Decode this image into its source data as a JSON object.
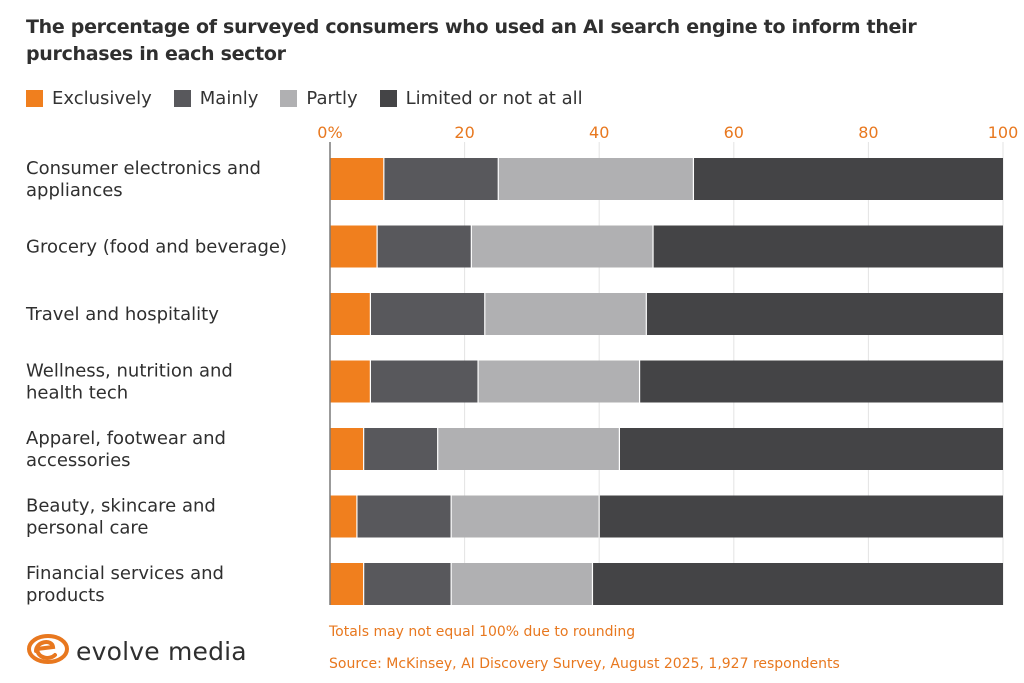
{
  "title": "The percentage of surveyed consumers who used an AI search engine to inform their purchases in each sector",
  "legend": [
    {
      "label": "Exclusively",
      "color": "#f07f1e"
    },
    {
      "label": "Mainly",
      "color": "#58585c"
    },
    {
      "label": "Partly",
      "color": "#b0b0b2"
    },
    {
      "label": "Limited or not at all",
      "color": "#444446"
    }
  ],
  "chart_data": {
    "type": "bar",
    "orientation": "horizontal",
    "stacked": true,
    "title": "The percentage of surveyed consumers who used an AI search engine to inform their purchases in each sector",
    "xlabel": "",
    "ylabel": "",
    "xlim": [
      0,
      100
    ],
    "ticks": [
      "0%",
      "20",
      "40",
      "60",
      "80",
      "100"
    ],
    "tick_values": [
      0,
      20,
      40,
      60,
      80,
      100
    ],
    "grid": true,
    "legend_position": "top-left",
    "categories": [
      [
        "Consumer electronics and",
        "appliances"
      ],
      [
        "Grocery (food and beverage)"
      ],
      [
        "Travel and hospitality"
      ],
      [
        "Wellness, nutrition and",
        "health tech"
      ],
      [
        "Apparel, footwear and",
        "accessories"
      ],
      [
        "Beauty, skincare and",
        "personal care"
      ],
      [
        "Financial services and",
        "products"
      ]
    ],
    "series": [
      {
        "name": "Exclusively",
        "color": "#f07f1e",
        "values": [
          8,
          7,
          6,
          6,
          5,
          4,
          5
        ]
      },
      {
        "name": "Mainly",
        "color": "#58585c",
        "values": [
          17,
          14,
          17,
          16,
          11,
          14,
          13
        ]
      },
      {
        "name": "Partly",
        "color": "#b0b0b2",
        "values": [
          29,
          27,
          24,
          24,
          27,
          22,
          21
        ]
      },
      {
        "name": "Limited or not at all",
        "color": "#444446",
        "values": [
          46,
          52,
          53,
          55,
          57,
          60,
          61
        ]
      }
    ]
  },
  "footnotes": {
    "rounding": "Totals may not equal 100% due to rounding",
    "source": "Source: McKinsey, AI Discovery Survey, August 2025, 1,927 respondents"
  },
  "logo": {
    "name": "evolve media",
    "mark_color": "#e8781f"
  }
}
